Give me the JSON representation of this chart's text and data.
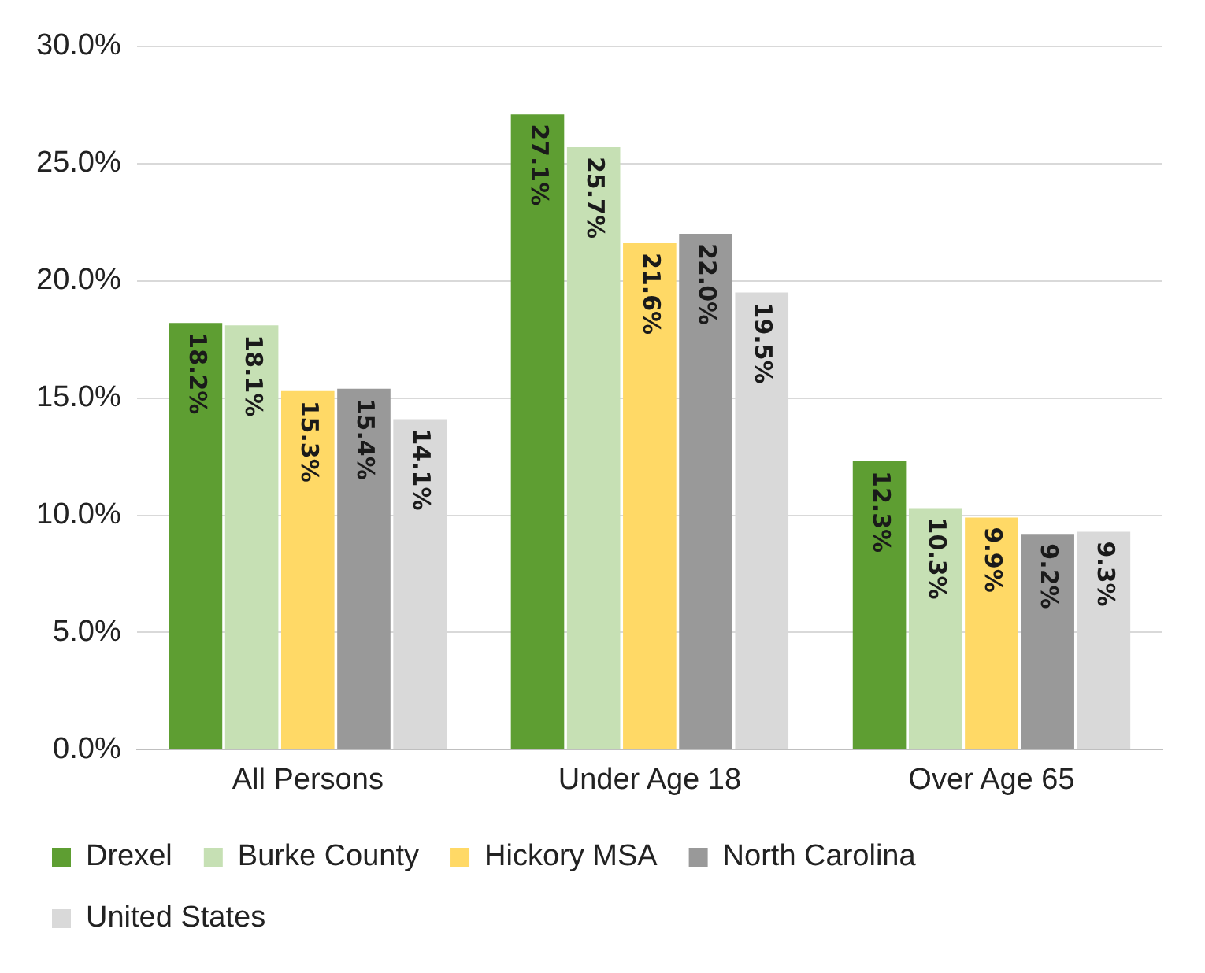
{
  "chart_data": {
    "type": "bar",
    "categories": [
      "All Persons",
      "Under Age 18",
      "Over Age 65"
    ],
    "series": [
      {
        "name": "Drexel",
        "color": "#5e9e32",
        "values": [
          18.2,
          27.1,
          12.3
        ],
        "value_labels": [
          "18.2%",
          "27.1%",
          "12.3%"
        ]
      },
      {
        "name": "Burke County",
        "color": "#c6e0b4",
        "values": [
          18.1,
          25.7,
          10.3
        ],
        "value_labels": [
          "18.1%",
          "25.7%",
          "10.3%"
        ]
      },
      {
        "name": "Hickory MSA",
        "color": "#ffd966",
        "values": [
          15.3,
          21.6,
          9.9
        ],
        "value_labels": [
          "15.3%",
          "21.6%",
          "9.9%"
        ]
      },
      {
        "name": "North Carolina",
        "color": "#999999",
        "values": [
          15.4,
          22.0,
          9.2
        ],
        "value_labels": [
          "15.4%",
          "22.0%",
          "9.2%"
        ]
      },
      {
        "name": "United States",
        "color": "#d9d9d9",
        "values": [
          14.1,
          19.5,
          9.3
        ],
        "value_labels": [
          "14.1%",
          "19.5%",
          "9.3%"
        ]
      }
    ],
    "ylim": [
      0,
      30
    ],
    "yticks": [
      {
        "value": 0,
        "label": "0.0%"
      },
      {
        "value": 5,
        "label": "5.0%"
      },
      {
        "value": 10,
        "label": "10.0%"
      },
      {
        "value": 15,
        "label": "15.0%"
      },
      {
        "value": 20,
        "label": "20.0%"
      },
      {
        "value": 25,
        "label": "25.0%"
      },
      {
        "value": 30,
        "label": "30.0%"
      }
    ],
    "grid": "y",
    "legend": "bottom"
  }
}
